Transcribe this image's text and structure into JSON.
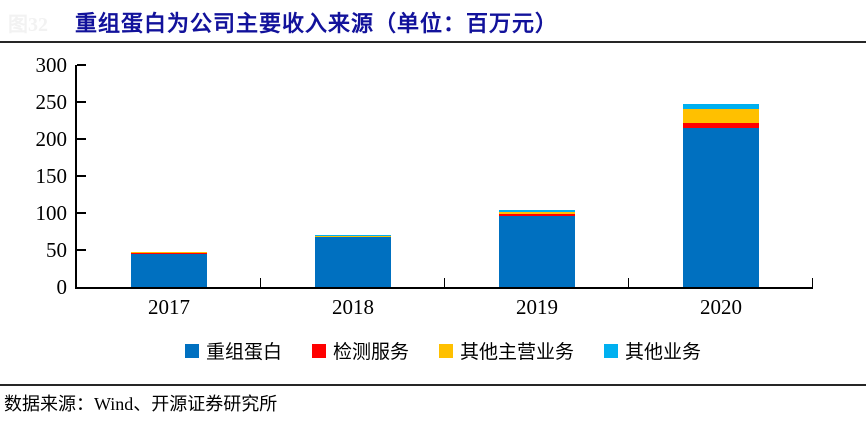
{
  "figure": {
    "remnant_label": "图32",
    "title": "重组蛋白为公司主要收入来源（单位：百万元）",
    "title_color": "#12129B",
    "source_note": "数据来源：Wind、开源证券研究所"
  },
  "chart_data": {
    "type": "bar",
    "stacked": true,
    "title": "重组蛋白为公司主要收入来源（单位：百万元）",
    "categories": [
      "2017",
      "2018",
      "2019",
      "2020"
    ],
    "series": [
      {
        "name": "重组蛋白",
        "color": "#0070C0",
        "values": [
          45,
          67,
          96,
          215
        ]
      },
      {
        "name": "检测服务",
        "color": "#FF0000",
        "values": [
          0.4,
          0.6,
          3,
          7
        ]
      },
      {
        "name": "其他主营业务",
        "color": "#FFC000",
        "values": [
          1.5,
          1.5,
          2,
          19
        ]
      },
      {
        "name": "其他业务",
        "color": "#00B0F0",
        "values": [
          0.6,
          1.5,
          3.5,
          6.5
        ]
      }
    ],
    "xlabel": "",
    "ylabel": "",
    "ylim": [
      0,
      300
    ],
    "yticks": [
      0,
      50,
      100,
      150,
      200,
      250,
      300
    ],
    "grid": false,
    "legend_position": "bottom",
    "axis_color": "#000000"
  }
}
